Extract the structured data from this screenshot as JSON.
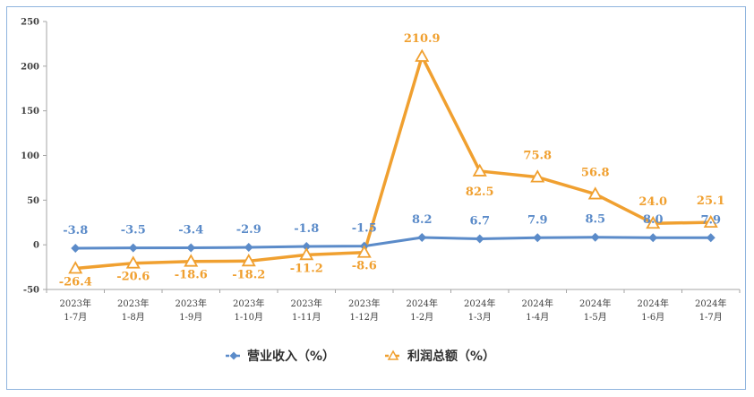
{
  "chart_data": {
    "type": "line",
    "categories": [
      [
        "2023年",
        "1-7月"
      ],
      [
        "2023年",
        "1-8月"
      ],
      [
        "2023年",
        "1-9月"
      ],
      [
        "2023年",
        "1-10月"
      ],
      [
        "2023年",
        "1-11月"
      ],
      [
        "2023年",
        "1-12月"
      ],
      [
        "2024年",
        "1-2月"
      ],
      [
        "2024年",
        "1-3月"
      ],
      [
        "2024年",
        "1-4月"
      ],
      [
        "2024年",
        "1-5月"
      ],
      [
        "2024年",
        "1-6月"
      ],
      [
        "2024年",
        "1-7月"
      ]
    ],
    "series": [
      {
        "name": "营业收入（%）",
        "color": "#5b8bc9",
        "marker": "diamond",
        "values": [
          -3.8,
          -3.5,
          -3.4,
          -2.9,
          -1.8,
          -1.5,
          8.2,
          6.7,
          7.9,
          8.5,
          8.0,
          7.9
        ],
        "labels": [
          "-3.8",
          "-3.5",
          "-3.4",
          "-2.9",
          "-1.8",
          "-1.5",
          "8.2",
          "6.7",
          "7.9",
          "8.5",
          "8.0",
          "7.9"
        ]
      },
      {
        "name": "利润总额（%）",
        "color": "#f0a030",
        "marker": "triangle",
        "values": [
          -26.4,
          -20.6,
          -18.6,
          -18.2,
          -11.2,
          -8.6,
          210.9,
          82.5,
          75.8,
          56.8,
          24.0,
          25.1
        ],
        "labels": [
          "-26.4",
          "-20.6",
          "-18.6",
          "-18.2",
          "-11.2",
          "-8.6",
          "210.9",
          "82.5",
          "75.8",
          "56.8",
          "24.0",
          "25.1"
        ]
      }
    ],
    "yticks": [
      "250",
      "200",
      "150",
      "100",
      "50",
      "0",
      "-50"
    ],
    "ylim": [
      -50,
      250
    ],
    "grid": false,
    "legend_position": "bottom"
  }
}
